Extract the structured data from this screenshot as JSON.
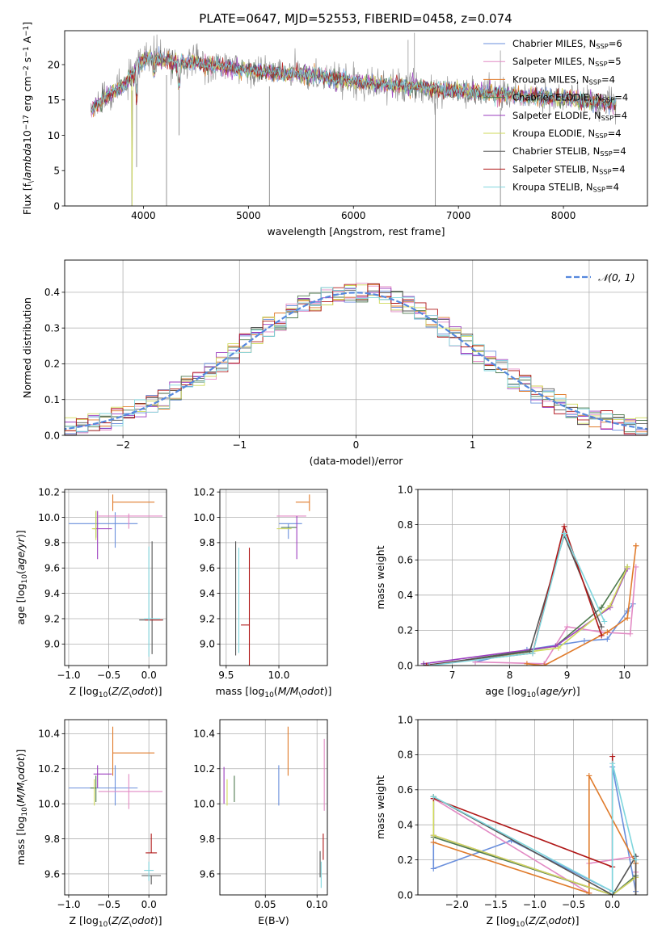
{
  "colors": {
    "Chabrier MILES": "#6a8fdc",
    "Salpeter MILES": "#e28ac4",
    "Kroupa MILES": "#e07b2b",
    "Chabrier ELODIE": "#4f7a4f",
    "Salpeter ELODIE": "#9c3dbf",
    "Kroupa ELODIE": "#cfd95a",
    "Chabrier STELIB": "#555555",
    "Salpeter STELIB": "#b01818",
    "Kroupa STELIB": "#7fd6dd",
    "data": "#888888",
    "normal": "#5588dd",
    "grid": "#b0b0b0"
  },
  "chart_data": [
    {
      "id": "spectrum",
      "type": "line",
      "title": "PLATE=0647, MJD=52553, FIBERID=0458, z=0.074",
      "xlabel": "wavelength [Angstrom, rest frame]",
      "ylabel": "Flux [f$_\\lambda$10$^{-17}$ erg cm$^{-2}$ s$^{-1}$ A$^{-1}$]",
      "xlim": [
        3250,
        8800
      ],
      "ylim": [
        0,
        24.8
      ],
      "xticks": [
        4000,
        5000,
        6000,
        7000,
        8000
      ],
      "yticks": [
        0,
        5,
        10,
        15,
        20
      ],
      "grid": false,
      "legend_position": "top-right",
      "legend": [
        "Chabrier MILES, N$_{SSP}$=6",
        "Salpeter MILES, N$_{SSP}$=5",
        "Kroupa MILES, N$_{SSP}$=4",
        "Chabrier ELODIE, N$_{SSP}$=4",
        "Salpeter ELODIE, N$_{SSP}$=4",
        "Kroupa ELODIE, N$_{SSP}$=4",
        "Chabrier STELIB, N$_{SSP}$=4",
        "Salpeter STELIB, N$_{SSP}$=4",
        "Kroupa STELIB, N$_{SSP}$=4"
      ],
      "continuum": {
        "x": [
          3500,
          3600,
          3700,
          3800,
          3900,
          4000,
          4100,
          4300,
          4500,
          4800,
          5000,
          5300,
          5600,
          6000,
          6300,
          6600,
          7000,
          7300,
          7600,
          8000,
          8300,
          8500
        ],
        "y": [
          13.5,
          15.0,
          16.0,
          16.8,
          18.5,
          20.8,
          21.0,
          20.2,
          20.3,
          19.6,
          19.2,
          18.8,
          18.5,
          17.6,
          17.2,
          16.8,
          16.2,
          16.0,
          15.5,
          15.2,
          14.7,
          14.4
        ]
      },
      "model_range": [
        3500,
        8500
      ],
      "data_range": [
        3500,
        8500
      ],
      "features": [
        {
          "x": 3890,
          "y": 0
        },
        {
          "x": 3935,
          "y": 5.5
        },
        {
          "x": 4220,
          "y": 0
        },
        {
          "x": 4340,
          "y": 10
        },
        {
          "x": 5200,
          "y": 0
        },
        {
          "x": 6780,
          "y": 0
        },
        {
          "x": 7400,
          "y": 0
        }
      ],
      "spikes": [
        {
          "x": 6520,
          "y": 23.5
        },
        {
          "x": 6580,
          "y": 24.5
        },
        {
          "x": 7400,
          "y": 22
        }
      ]
    },
    {
      "id": "residuals",
      "type": "step",
      "xlabel": "(data-model)/error",
      "ylabel": "Normed distribution",
      "xlim": [
        -2.5,
        2.5
      ],
      "ylim": [
        0,
        0.49
      ],
      "xticks": [
        -2,
        -1,
        0,
        1,
        2
      ],
      "yticks": [
        0.0,
        0.1,
        0.2,
        0.3,
        0.4
      ],
      "grid": true,
      "legend_position": "top-right",
      "legend": [
        "$\\mathcal{N}(0,1)$"
      ],
      "bin_width": 0.1,
      "normal_curve": {
        "mean": 0,
        "sigma": 1
      }
    },
    {
      "id": "age_vs_Z",
      "type": "errorbar",
      "xlabel": "Z [log$_{10}$($Z/Z_\\odot$)]",
      "ylabel": "age  [log$_{10}$($age/yr$)]",
      "xlim": [
        -1.05,
        0.22
      ],
      "ylim": [
        8.83,
        10.22
      ],
      "xticks": [
        -1.0,
        -0.5,
        0.0
      ],
      "yticks": [
        9.0,
        9.2,
        9.4,
        9.6,
        9.8,
        10.0,
        10.2
      ],
      "grid": true,
      "points": [
        {
          "model": "Chabrier MILES",
          "x": -0.42,
          "y": 9.95,
          "xerr": [
            0.58,
            0.28
          ],
          "yerr": [
            0.19,
            0.09
          ]
        },
        {
          "model": "Salpeter MILES",
          "x": -0.25,
          "y": 10.01,
          "xerr": [
            0.38,
            0.42
          ],
          "yerr": [
            0.1,
            0.02
          ]
        },
        {
          "model": "Kroupa MILES",
          "x": -0.45,
          "y": 10.12,
          "xerr": [
            0.0,
            0.52
          ],
          "yerr": [
            0.07,
            0.06
          ]
        },
        {
          "model": "Chabrier ELODIE",
          "x": -0.66,
          "y": 9.92,
          "xerr": [
            0.0,
            0.0
          ],
          "yerr": [
            0.08,
            0.13
          ]
        },
        {
          "model": "Salpeter ELODIE",
          "x": -0.64,
          "y": 9.91,
          "xerr": [
            0.05,
            0.18
          ],
          "yerr": [
            0.24,
            0.14
          ]
        },
        {
          "model": "Kroupa ELODIE",
          "x": -0.66,
          "y": 9.91,
          "xerr": [
            0.05,
            0.0
          ],
          "yerr": [
            0.09,
            0.14
          ]
        },
        {
          "model": "Chabrier STELIB",
          "x": 0.04,
          "y": 9.19,
          "xerr": [
            0.16,
            0.14
          ],
          "yerr": [
            0.27,
            0.62
          ]
        },
        {
          "model": "Salpeter STELIB",
          "x": 0.05,
          "y": 9.19,
          "xerr": [
            0.1,
            0.12
          ],
          "yerr": [
            0.0,
            0.0
          ]
        },
        {
          "model": "Kroupa STELIB",
          "x": 0.0,
          "y": 9.2,
          "xerr": [
            0.06,
            0.14
          ],
          "yerr": [
            0.3,
            0.57
          ]
        }
      ]
    },
    {
      "id": "age_vs_mass",
      "type": "errorbar",
      "xlabel": "mass [log$_{10}$($M/M_\\odot$)]",
      "ylabel": "",
      "xlim": [
        9.44,
        10.46
      ],
      "ylim": [
        8.83,
        10.22
      ],
      "xticks": [
        9.5,
        10.0
      ],
      "yticks": [
        9.0,
        9.2,
        9.4,
        9.6,
        9.8,
        10.0,
        10.2
      ],
      "grid": true,
      "points": [
        {
          "model": "Chabrier MILES",
          "x": 10.09,
          "y": 9.95,
          "xerr": [
            0.09,
            0.13
          ],
          "yerr": [
            0.12,
            0.0
          ]
        },
        {
          "model": "Salpeter MILES",
          "x": 10.12,
          "y": 10.01,
          "xerr": [
            0.14,
            0.14
          ],
          "yerr": [
            0.0,
            0.0
          ]
        },
        {
          "model": "Kroupa MILES",
          "x": 10.29,
          "y": 10.12,
          "xerr": [
            0.13,
            0.0
          ],
          "yerr": [
            0.07,
            0.06
          ]
        },
        {
          "model": "Chabrier ELODIE",
          "x": 10.09,
          "y": 9.92,
          "xerr": [
            0.07,
            0.08
          ],
          "yerr": [
            0.0,
            0.0
          ]
        },
        {
          "model": "Salpeter ELODIE",
          "x": 10.17,
          "y": 9.91,
          "xerr": [
            0.0,
            0.0
          ],
          "yerr": [
            0.24,
            0.1
          ]
        },
        {
          "model": "Kroupa ELODIE",
          "x": 10.06,
          "y": 9.91,
          "xerr": [
            0.08,
            0.06
          ],
          "yerr": [
            0.0,
            0.0
          ]
        },
        {
          "model": "Chabrier STELIB",
          "x": 9.59,
          "y": 9.19,
          "xerr": [
            0.0,
            0.0
          ],
          "yerr": [
            0.28,
            0.62
          ]
        },
        {
          "model": "Salpeter STELIB",
          "x": 9.72,
          "y": 9.15,
          "xerr": [
            0.08,
            0.0
          ],
          "yerr": [
            0.42,
            0.61
          ]
        },
        {
          "model": "Kroupa STELIB",
          "x": 9.62,
          "y": 9.2,
          "xerr": [
            0.0,
            0.0
          ],
          "yerr": [
            0.27,
            0.56
          ]
        }
      ]
    },
    {
      "id": "weight_vs_age",
      "type": "line",
      "xlabel": "age  [log$_{10}$($age/yr$)]",
      "ylabel": "mass weight",
      "xlim": [
        6.4,
        10.4
      ],
      "ylim": [
        0,
        1
      ],
      "xticks": [
        7,
        8,
        9,
        10
      ],
      "yticks": [
        0.0,
        0.2,
        0.4,
        0.6,
        0.8,
        1.0
      ],
      "grid": true,
      "series": [
        {
          "model": "Chabrier MILES",
          "x": [
            7.4,
            8.3,
            9.3,
            9.7,
            10.05,
            10.15
          ],
          "y": [
            0.02,
            0.09,
            0.14,
            0.15,
            0.31,
            0.35
          ]
        },
        {
          "model": "Salpeter MILES",
          "x": [
            7.4,
            8.6,
            9.0,
            9.6,
            10.1,
            10.2
          ],
          "y": [
            0.02,
            0.01,
            0.22,
            0.19,
            0.18,
            0.56
          ]
        },
        {
          "model": "Kroupa MILES",
          "x": [
            8.3,
            8.6,
            9.7,
            10.05,
            10.2,
            10.2
          ],
          "y": [
            0.01,
            0.0,
            0.19,
            0.27,
            0.68,
            0.68
          ]
        },
        {
          "model": "Chabrier ELODIE",
          "x": [
            6.6,
            8.8,
            9.6,
            10.05
          ],
          "y": [
            0.0,
            0.11,
            0.33,
            0.56
          ]
        },
        {
          "model": "Salpeter ELODIE",
          "x": [
            6.5,
            8.8,
            9.75,
            10.05
          ],
          "y": [
            0.01,
            0.11,
            0.33,
            0.55
          ]
        },
        {
          "model": "Kroupa ELODIE",
          "x": [
            6.55,
            8.85,
            9.75,
            10.05
          ],
          "y": [
            0.0,
            0.1,
            0.34,
            0.56
          ]
        },
        {
          "model": "Chabrier STELIB",
          "x": [
            6.5,
            8.35,
            8.95,
            9.6
          ],
          "y": [
            0.0,
            0.08,
            0.74,
            0.22
          ]
        },
        {
          "model": "Salpeter STELIB",
          "x": [
            6.55,
            8.4,
            8.95,
            9.6
          ],
          "y": [
            0.0,
            0.07,
            0.79,
            0.17
          ]
        },
        {
          "model": "Kroupa STELIB",
          "x": [
            6.6,
            8.4,
            8.95,
            9.65
          ],
          "y": [
            0.0,
            0.07,
            0.75,
            0.25
          ]
        }
      ]
    },
    {
      "id": "mass_vs_Z",
      "type": "errorbar",
      "xlabel": "Z [log$_{10}$($Z/Z_\\odot$)]",
      "ylabel": "mass [log$_{10}$($M/M_\\odot$)]",
      "xlim": [
        -1.05,
        0.22
      ],
      "ylim": [
        9.48,
        10.48
      ],
      "xticks": [
        -1.0,
        -0.5,
        0.0
      ],
      "yticks": [
        9.6,
        9.8,
        10.0,
        10.2,
        10.4
      ],
      "grid": true,
      "points": [
        {
          "model": "Chabrier MILES",
          "x": -0.42,
          "y": 10.09,
          "xerr": [
            0.58,
            0.28
          ],
          "yerr": [
            0.1,
            0.13
          ]
        },
        {
          "model": "Salpeter MILES",
          "x": -0.25,
          "y": 10.07,
          "xerr": [
            0.38,
            0.42
          ],
          "yerr": [
            0.1,
            0.1
          ]
        },
        {
          "model": "Kroupa MILES",
          "x": -0.45,
          "y": 10.29,
          "xerr": [
            0.0,
            0.52
          ],
          "yerr": [
            0.13,
            0.15
          ]
        },
        {
          "model": "Chabrier ELODIE",
          "x": -0.66,
          "y": 10.09,
          "xerr": [
            0.07,
            0.0
          ],
          "yerr": [
            0.08,
            0.07
          ]
        },
        {
          "model": "Salpeter ELODIE",
          "x": -0.64,
          "y": 10.17,
          "xerr": [
            0.05,
            0.18
          ],
          "yerr": [
            0.08,
            0.05
          ]
        },
        {
          "model": "Kroupa ELODIE",
          "x": -0.68,
          "y": 10.06,
          "xerr": [
            0.0,
            0.0
          ],
          "yerr": [
            0.07,
            0.08
          ]
        },
        {
          "model": "Chabrier STELIB",
          "x": 0.03,
          "y": 9.59,
          "xerr": [
            0.12,
            0.12
          ],
          "yerr": [
            0.05,
            0.0
          ]
        },
        {
          "model": "Salpeter STELIB",
          "x": 0.03,
          "y": 9.72,
          "xerr": [
            0.07,
            0.07
          ],
          "yerr": [
            0.0,
            0.11
          ]
        },
        {
          "model": "Kroupa STELIB",
          "x": 0.0,
          "y": 9.62,
          "xerr": [
            0.06,
            0.06
          ],
          "yerr": [
            0.06,
            0.05
          ]
        }
      ]
    },
    {
      "id": "mass_vs_EBV",
      "type": "errorbar",
      "xlabel": "E(B-V)",
      "ylabel": "",
      "xlim": [
        0.006,
        0.11
      ],
      "ylim": [
        9.48,
        10.48
      ],
      "xticks": [
        0.05,
        0.1
      ],
      "yticks": [
        9.6,
        9.8,
        10.0,
        10.2,
        10.4
      ],
      "grid": true,
      "points": [
        {
          "model": "Chabrier MILES",
          "x": 0.063,
          "y": 10.09,
          "xerr": [
            0.0,
            0.0
          ],
          "yerr": [
            0.1,
            0.13
          ]
        },
        {
          "model": "Salpeter MILES",
          "x": 0.107,
          "y": 10.16,
          "xerr": [
            0.0,
            0.0
          ],
          "yerr": [
            0.2,
            0.21
          ]
        },
        {
          "model": "Kroupa MILES",
          "x": 0.072,
          "y": 10.29,
          "xerr": [
            0.0,
            0.0
          ],
          "yerr": [
            0.13,
            0.15
          ]
        },
        {
          "model": "Chabrier ELODIE",
          "x": 0.02,
          "y": 10.09,
          "xerr": [
            0.0,
            0.0
          ],
          "yerr": [
            0.08,
            0.07
          ]
        },
        {
          "model": "Salpeter ELODIE",
          "x": 0.01,
          "y": 10.1,
          "xerr": [
            0.0,
            0.0
          ],
          "yerr": [
            0.1,
            0.11
          ]
        },
        {
          "model": "Kroupa ELODIE",
          "x": 0.013,
          "y": 10.06,
          "xerr": [
            0.0,
            0.0
          ],
          "yerr": [
            0.07,
            0.08
          ]
        },
        {
          "model": "Chabrier STELIB",
          "x": 0.103,
          "y": 9.63,
          "xerr": [
            0.0,
            0.0
          ],
          "yerr": [
            0.05,
            0.1
          ]
        },
        {
          "model": "Salpeter STELIB",
          "x": 0.106,
          "y": 9.74,
          "xerr": [
            0.0,
            0.0
          ],
          "yerr": [
            0.06,
            0.09
          ]
        },
        {
          "model": "Kroupa STELIB",
          "x": 0.104,
          "y": 9.6,
          "xerr": [
            0.0,
            0.0
          ],
          "yerr": [
            0.08,
            0.07
          ]
        }
      ]
    },
    {
      "id": "weight_vs_Z",
      "type": "line",
      "xlabel": "Z [log$_{10}$($Z/Z_\\odot$)]",
      "ylabel": "mass weight",
      "xlim": [
        -2.5,
        0.45
      ],
      "ylim": [
        0,
        1
      ],
      "xticks": [
        -2.0,
        -1.5,
        -1.0,
        -0.5,
        0.0
      ],
      "yticks": [
        0.0,
        0.2,
        0.4,
        0.6,
        0.8,
        1.0
      ],
      "grid": true,
      "series": [
        {
          "model": "Chabrier MILES",
          "x": [
            -2.3,
            -2.3,
            -1.3,
            0.0,
            0.0,
            0.3,
            0.3
          ],
          "y": [
            0.3,
            0.15,
            0.31,
            0.02,
            0.73,
            0.02,
            0.0
          ]
        },
        {
          "model": "Salpeter MILES",
          "x": [
            -2.3,
            -0.3,
            -0.3,
            0.0,
            0.3,
            0.3
          ],
          "y": [
            0.55,
            0.01,
            0.18,
            0.2,
            0.22,
            0.13
          ]
        },
        {
          "model": "Kroupa MILES",
          "x": [
            -2.3,
            -0.3,
            -0.3,
            0.3,
            0.3
          ],
          "y": [
            0.3,
            0.01,
            0.68,
            0.18,
            0.0
          ]
        },
        {
          "model": "Chabrier ELODIE",
          "x": [
            -2.3,
            -2.3,
            0.0,
            0.3
          ],
          "y": [
            0.56,
            0.33,
            0.0,
            0.11
          ]
        },
        {
          "model": "Salpeter ELODIE",
          "x": [
            -2.3,
            -2.3,
            0.0,
            0.3
          ],
          "y": [
            0.55,
            0.34,
            0.0,
            0.1
          ]
        },
        {
          "model": "Kroupa ELODIE",
          "x": [
            -2.3,
            -2.3,
            0.0,
            0.3
          ],
          "y": [
            0.56,
            0.34,
            0.0,
            0.1
          ]
        },
        {
          "model": "Chabrier STELIB",
          "x": [
            -2.3,
            0.0,
            0.3,
            0.3
          ],
          "y": [
            0.56,
            0.0,
            0.22,
            0.0
          ]
        },
        {
          "model": "Salpeter STELIB",
          "x": [
            -2.3,
            0.0,
            0.0
          ],
          "y": [
            0.55,
            0.16,
            0.79
          ]
        },
        {
          "model": "Kroupa STELIB",
          "x": [
            -2.3,
            0.0,
            0.0,
            0.3
          ],
          "y": [
            0.56,
            0.02,
            0.75,
            0.2
          ]
        }
      ]
    }
  ]
}
